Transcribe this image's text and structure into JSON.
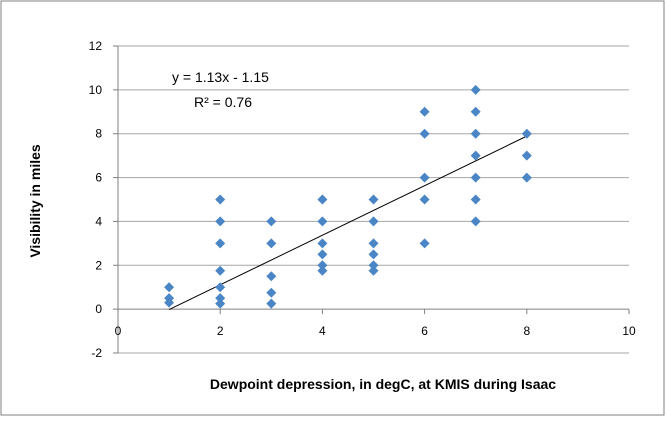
{
  "chart_data": {
    "type": "scatter",
    "xlabel": "Dewpoint depression, in degC, at KMIS during Isaac",
    "ylabel": "Visibility in miles",
    "xlim": [
      0,
      10
    ],
    "ylim": [
      -2,
      12
    ],
    "xticks": [
      "0",
      "2",
      "4",
      "6",
      "8",
      "10"
    ],
    "yticks": [
      "-2",
      "0",
      "2",
      "4",
      "6",
      "8",
      "10",
      "12"
    ],
    "grid": "horizontal",
    "point_color": "#4a86c5",
    "trend_color": "#000000",
    "trendline": {
      "slope": 1.13,
      "intercept": -1.15,
      "x_range": [
        1,
        8
      ],
      "equation": "y = 1.13x - 1.15",
      "r2_label": "R² = 0.76"
    },
    "points": [
      {
        "x": 1,
        "y": 1.0
      },
      {
        "x": 1,
        "y": 0.5
      },
      {
        "x": 1,
        "y": 0.3
      },
      {
        "x": 2,
        "y": 5
      },
      {
        "x": 2,
        "y": 4
      },
      {
        "x": 2,
        "y": 3
      },
      {
        "x": 2,
        "y": 1.75
      },
      {
        "x": 2,
        "y": 1.0
      },
      {
        "x": 2,
        "y": 0.5
      },
      {
        "x": 2,
        "y": 0.25
      },
      {
        "x": 3,
        "y": 4
      },
      {
        "x": 3,
        "y": 3
      },
      {
        "x": 3,
        "y": 1.5
      },
      {
        "x": 3,
        "y": 0.75
      },
      {
        "x": 3,
        "y": 0.25
      },
      {
        "x": 4,
        "y": 5
      },
      {
        "x": 4,
        "y": 4
      },
      {
        "x": 4,
        "y": 3
      },
      {
        "x": 4,
        "y": 2.5
      },
      {
        "x": 4,
        "y": 2
      },
      {
        "x": 4,
        "y": 1.75
      },
      {
        "x": 5,
        "y": 5
      },
      {
        "x": 5,
        "y": 4
      },
      {
        "x": 5,
        "y": 3
      },
      {
        "x": 5,
        "y": 2.5
      },
      {
        "x": 5,
        "y": 2
      },
      {
        "x": 5,
        "y": 1.75
      },
      {
        "x": 6,
        "y": 9
      },
      {
        "x": 6,
        "y": 8
      },
      {
        "x": 6,
        "y": 6
      },
      {
        "x": 6,
        "y": 5
      },
      {
        "x": 6,
        "y": 3
      },
      {
        "x": 7,
        "y": 10
      },
      {
        "x": 7,
        "y": 9
      },
      {
        "x": 7,
        "y": 8
      },
      {
        "x": 7,
        "y": 7
      },
      {
        "x": 7,
        "y": 6
      },
      {
        "x": 7,
        "y": 5
      },
      {
        "x": 7,
        "y": 4
      },
      {
        "x": 8,
        "y": 8
      },
      {
        "x": 8,
        "y": 7
      },
      {
        "x": 8,
        "y": 6
      }
    ]
  }
}
